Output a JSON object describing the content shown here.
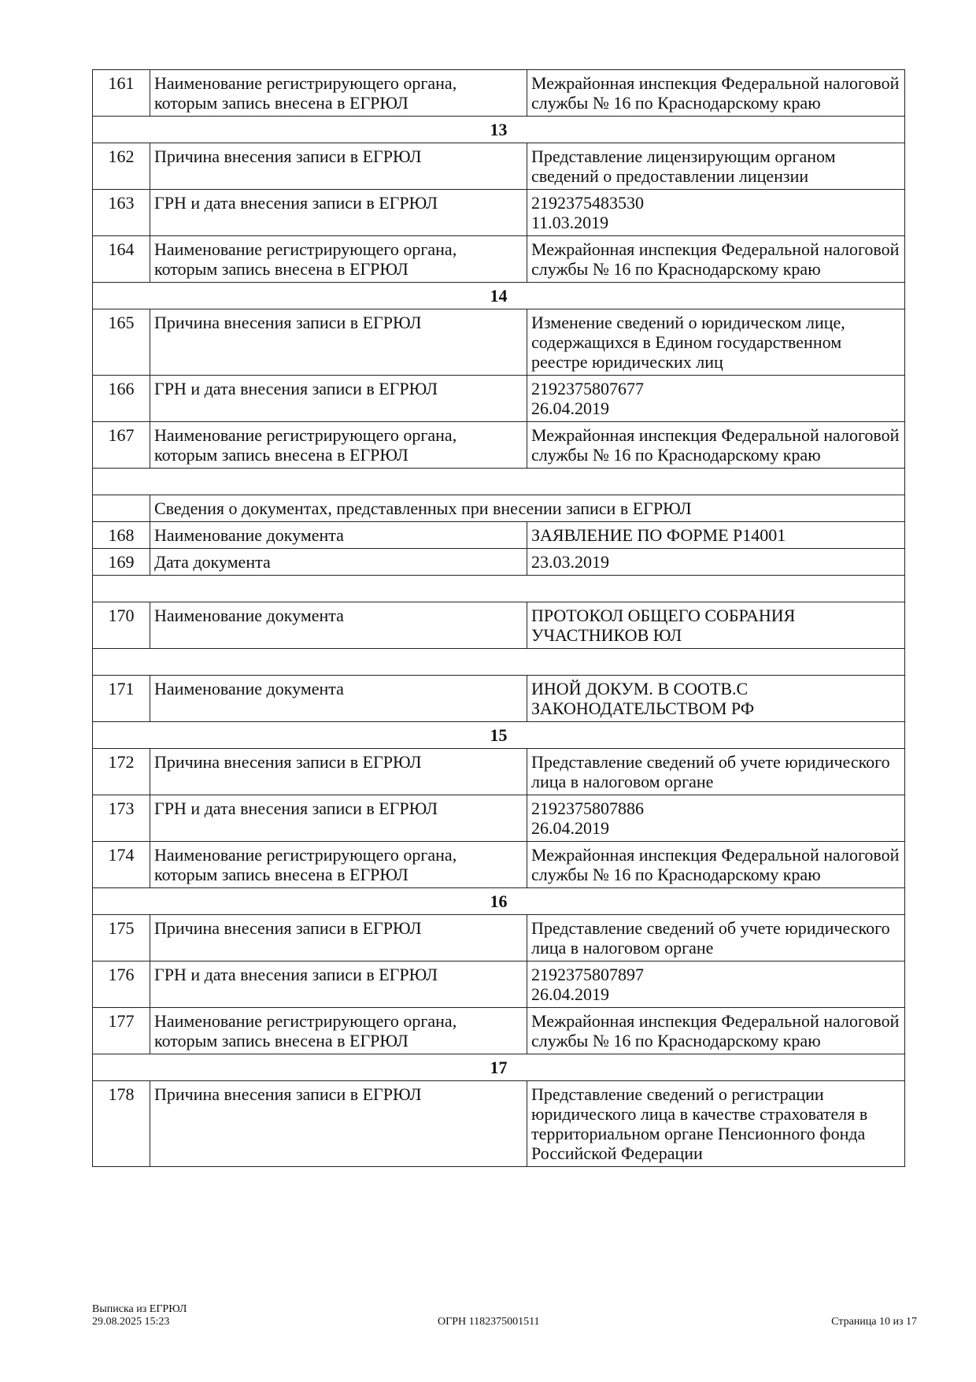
{
  "rows": [
    {
      "type": "row",
      "num": "161",
      "label": "Наименование регистрирующего органа, которым запись внесена в ЕГРЮЛ",
      "value": "Межрайонная инспекция Федеральной налоговой службы № 16 по Краснодарскому краю"
    },
    {
      "type": "section",
      "title": "13"
    },
    {
      "type": "row",
      "num": "162",
      "label": "Причина внесения записи в ЕГРЮЛ",
      "value": "Представление лицензирующим органом сведений о предоставлении лицензии"
    },
    {
      "type": "row",
      "num": "163",
      "label": "ГРН и дата внесения записи в ЕГРЮЛ",
      "value": "2192375483530\n11.03.2019"
    },
    {
      "type": "row",
      "num": "164",
      "label": "Наименование регистрирующего органа, которым запись внесена в ЕГРЮЛ",
      "value": "Межрайонная инспекция Федеральной налоговой службы № 16 по Краснодарскому краю"
    },
    {
      "type": "section",
      "title": "14"
    },
    {
      "type": "row",
      "num": "165",
      "label": "Причина внесения записи в ЕГРЮЛ",
      "value": "Изменение сведений о юридическом лице, содержащихся в Едином государственном реестре юридических лиц"
    },
    {
      "type": "row",
      "num": "166",
      "label": "ГРН и дата внесения записи в ЕГРЮЛ",
      "value": "2192375807677\n26.04.2019"
    },
    {
      "type": "row",
      "num": "167",
      "label": "Наименование регистрирующего органа, которым запись внесена в ЕГРЮЛ",
      "value": "Межрайонная инспекция Федеральной налоговой службы № 16 по Краснодарскому краю"
    },
    {
      "type": "blank"
    },
    {
      "type": "subheader",
      "title": "Сведения о документах, представленных при внесении записи в ЕГРЮЛ"
    },
    {
      "type": "row",
      "num": "168",
      "label": "Наименование документа",
      "value": "ЗАЯВЛЕНИЕ ПО ФОРМЕ Р14001"
    },
    {
      "type": "row",
      "num": "169",
      "label": "Дата документа",
      "value": "23.03.2019"
    },
    {
      "type": "blank"
    },
    {
      "type": "row",
      "num": "170",
      "label": "Наименование документа",
      "value": "ПРОТОКОЛ ОБЩЕГО СОБРАНИЯ\nУЧАСТНИКОВ ЮЛ"
    },
    {
      "type": "blank"
    },
    {
      "type": "row",
      "num": "171",
      "label": "Наименование документа",
      "value": "ИНОЙ ДОКУМ. В СООТВ.С\nЗАКОНОДАТЕЛЬСТВОМ РФ"
    },
    {
      "type": "section",
      "title": "15"
    },
    {
      "type": "row",
      "num": "172",
      "label": "Причина внесения записи в ЕГРЮЛ",
      "value": "Представление сведений об учете юридического лица в налоговом органе"
    },
    {
      "type": "row",
      "num": "173",
      "label": "ГРН и дата внесения записи в ЕГРЮЛ",
      "value": "2192375807886\n26.04.2019"
    },
    {
      "type": "row",
      "num": "174",
      "label": "Наименование регистрирующего органа, которым запись внесена в ЕГРЮЛ",
      "value": "Межрайонная инспекция Федеральной налоговой службы № 16 по Краснодарскому краю"
    },
    {
      "type": "section",
      "title": "16"
    },
    {
      "type": "row",
      "num": "175",
      "label": "Причина внесения записи в ЕГРЮЛ",
      "value": "Представление сведений об учете юридического лица в налоговом органе"
    },
    {
      "type": "row",
      "num": "176",
      "label": "ГРН и дата внесения записи в ЕГРЮЛ",
      "value": "2192375807897\n26.04.2019"
    },
    {
      "type": "row",
      "num": "177",
      "label": "Наименование регистрирующего органа, которым запись внесена в ЕГРЮЛ",
      "value": "Межрайонная инспекция Федеральной налоговой службы № 16 по Краснодарскому краю"
    },
    {
      "type": "section",
      "title": "17"
    },
    {
      "type": "row",
      "num": "178",
      "label": "Причина внесения записи в ЕГРЮЛ",
      "value": "Представление сведений о регистрации юридического лица в качестве страхователя в территориальном органе Пенсионного фонда Российской Федерации"
    }
  ],
  "footer": {
    "doc_title": "Выписка из ЕГРЮЛ",
    "datetime": "29.08.2025 15:23",
    "ogrn": "ОГРН 1182375001511",
    "page": "Страница 10 из 17"
  }
}
